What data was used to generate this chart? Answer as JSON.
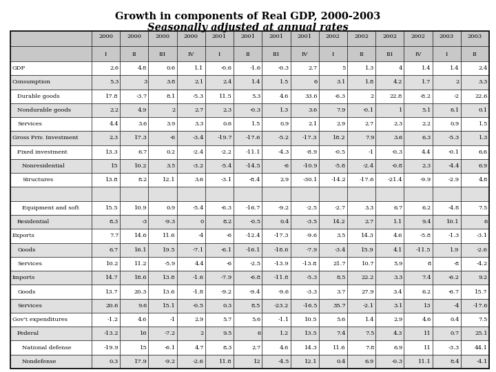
{
  "title1": "Growth in components of Real GDP, 2000-2003",
  "title2": "Seasonally adjusted at annual rates",
  "col_headers_year": [
    "2000",
    "2000",
    "2000",
    "2000",
    "2001",
    "2001",
    "2001",
    "2001",
    "2002",
    "2002",
    "2002",
    "2002",
    "2003",
    "2003"
  ],
  "col_headers_q": [
    "I",
    "II",
    "III",
    "IV",
    "I",
    "II",
    "III",
    "IV",
    "I",
    "II",
    "III",
    "IV",
    "I",
    "II"
  ],
  "row_labels": [
    "GDP",
    "Consumption",
    "Durable goods",
    "Nondurable goods",
    "Services",
    "Gross Priv. Investment",
    "Fixed investment",
    "Nonresidential",
    "Structures",
    "",
    "Equipment and soft",
    "Residential",
    "Exports",
    "Goods",
    "Services",
    "Imports",
    "Goods",
    "Services",
    "Gov't expenditures",
    "Federal",
    "National defense",
    "Nondefense"
  ],
  "indent_levels": [
    0,
    0,
    1,
    1,
    1,
    0,
    1,
    2,
    2,
    2,
    2,
    1,
    0,
    1,
    1,
    0,
    1,
    1,
    0,
    1,
    2,
    2
  ],
  "table_data": [
    [
      2.6,
      4.8,
      0.6,
      1.1,
      -0.6,
      -1.6,
      -0.3,
      2.7,
      5,
      1.3,
      4,
      1.4,
      1.4,
      2.4
    ],
    [
      5.3,
      3,
      3.8,
      2.1,
      2.4,
      1.4,
      1.5,
      6,
      3.1,
      1.8,
      4.2,
      1.7,
      2,
      3.3
    ],
    [
      17.8,
      -3.7,
      8.1,
      -5.3,
      11.5,
      5.3,
      4.6,
      33.6,
      -6.3,
      2,
      22.8,
      -8.2,
      -2,
      22.6
    ],
    [
      2.2,
      4.9,
      2,
      2.7,
      2.3,
      -0.3,
      1.3,
      3.6,
      7.9,
      -0.1,
      1,
      5.1,
      6.1,
      0.1
    ],
    [
      4.4,
      3.6,
      3.9,
      3.3,
      0.6,
      1.5,
      0.9,
      2.1,
      2.9,
      2.7,
      2.3,
      2.2,
      0.9,
      1.5
    ],
    [
      2.3,
      17.3,
      -6,
      -3.4,
      -19.7,
      -17.6,
      -5.2,
      -17.3,
      18.2,
      7.9,
      3.6,
      6.3,
      -5.3,
      1.3
    ],
    [
      13.3,
      6.7,
      0.2,
      -2.4,
      -2.2,
      -11.1,
      -4.3,
      -8.9,
      -0.5,
      -1,
      -0.3,
      4.4,
      -0.1,
      6.6
    ],
    [
      15,
      10.2,
      3.5,
      -3.2,
      -5.4,
      -14.5,
      -6,
      -10.9,
      -5.8,
      -2.4,
      -0.8,
      2.3,
      -4.4,
      6.9
    ],
    [
      13.8,
      8.2,
      12.1,
      3.6,
      -3.1,
      -8.4,
      2.9,
      -30.1,
      -14.2,
      -17.6,
      -21.4,
      -9.9,
      -2.9,
      4.8
    ],
    [
      null,
      null,
      null,
      null,
      null,
      null,
      null,
      null,
      null,
      null,
      null,
      null,
      null,
      null
    ],
    [
      15.5,
      10.9,
      0.9,
      -5.4,
      -6.3,
      -16.7,
      -9.2,
      -2.5,
      -2.7,
      3.3,
      6.7,
      6.2,
      -4.8,
      7.5
    ],
    [
      8.3,
      -3,
      -9.3,
      0,
      8.2,
      -0.5,
      0.4,
      -3.5,
      14.2,
      2.7,
      1.1,
      9.4,
      10.1,
      6
    ],
    [
      7.7,
      14.6,
      11.6,
      -4,
      -6,
      -12.4,
      -17.3,
      -9.6,
      3.5,
      14.3,
      4.6,
      -5.8,
      -1.3,
      -3.1
    ],
    [
      6.7,
      16.1,
      19.5,
      -7.1,
      -6.1,
      -16.1,
      -18.6,
      -7.9,
      -3.4,
      15.9,
      4.1,
      -11.5,
      1.9,
      -2.6
    ],
    [
      10.2,
      11.2,
      -5.9,
      4.4,
      -6,
      -2.5,
      -13.9,
      -13.8,
      21.7,
      10.7,
      5.9,
      8,
      -8,
      -4.2
    ],
    [
      14.7,
      18.6,
      13.8,
      -1.6,
      -7.9,
      -6.8,
      -11.8,
      -5.3,
      8.5,
      22.2,
      3.3,
      7.4,
      -6.2,
      9.2
    ],
    [
      13.7,
      20.3,
      13.6,
      -1.8,
      -9.2,
      -9.4,
      -9.6,
      -3.3,
      3.7,
      27.9,
      3.4,
      6.2,
      -6.7,
      15.7
    ],
    [
      20.6,
      9.6,
      15.1,
      -0.5,
      0.3,
      8.5,
      -23.2,
      -16.5,
      35.7,
      -2.1,
      3.1,
      13,
      -4,
      -17.6
    ],
    [
      -1.2,
      4.6,
      -1,
      2.9,
      5.7,
      5.6,
      -1.1,
      10.5,
      5.6,
      1.4,
      2.9,
      4.6,
      0.4,
      7.5
    ],
    [
      -13.2,
      16,
      -7.2,
      2,
      9.5,
      6,
      1.2,
      13.5,
      7.4,
      7.5,
      4.3,
      11,
      0.7,
      25.1
    ],
    [
      -19.9,
      15,
      -6.1,
      4.7,
      8.3,
      2.7,
      4.6,
      14.3,
      11.6,
      7.8,
      6.9,
      11,
      -3.3,
      44.1
    ],
    [
      0.3,
      17.9,
      -9.2,
      -2.6,
      11.8,
      12,
      -4.5,
      12.1,
      0.4,
      6.9,
      -0.3,
      11.1,
      8.4,
      -4.1
    ]
  ],
  "header_bg": "#c8c8c8",
  "white": "#ffffff",
  "light_gray": "#e0e0e0",
  "title_fontsize": 10.5,
  "cell_fontsize": 6.0,
  "fig_width": 7.2,
  "fig_height": 5.4,
  "dpi": 100
}
